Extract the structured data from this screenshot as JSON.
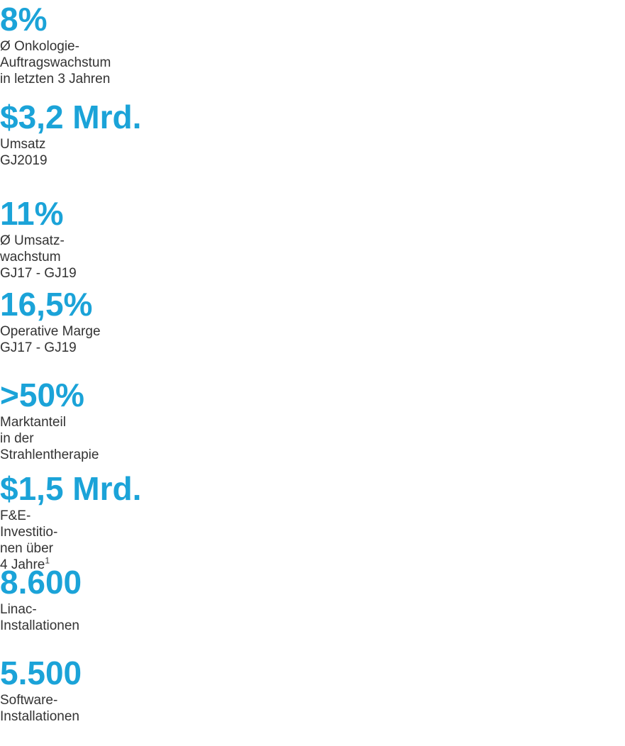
{
  "cards": [
    {
      "figure": "8%",
      "lines": [
        "Ø Onkologie-",
        "Auftragswachstum",
        "in letzten 3 Jahren"
      ]
    },
    {
      "figure": "$3,2 Mrd.",
      "lines": [
        "Umsatz",
        "GJ2019"
      ]
    },
    {
      "figure": "11%",
      "lines": [
        "Ø Umsatz-",
        "wachstum",
        "GJ17 - GJ19"
      ]
    },
    {
      "figure": "16,5%",
      "lines": [
        "Operative Marge",
        "GJ17 - GJ19"
      ]
    },
    {
      "figure": ">50%",
      "lines": [
        "Marktanteil",
        "in der",
        "Strahlentherapie"
      ]
    },
    {
      "figure": "$1,5 Mrd.",
      "lines": [
        "F&E-",
        "Investitio-",
        "nen über",
        "4 Jahre"
      ],
      "footnote": "1"
    },
    {
      "figure": "8.600",
      "lines": [
        "Linac-",
        "Installationen"
      ]
    },
    {
      "figure": "5.500",
      "lines": [
        "Software-",
        "Installationen"
      ]
    }
  ]
}
